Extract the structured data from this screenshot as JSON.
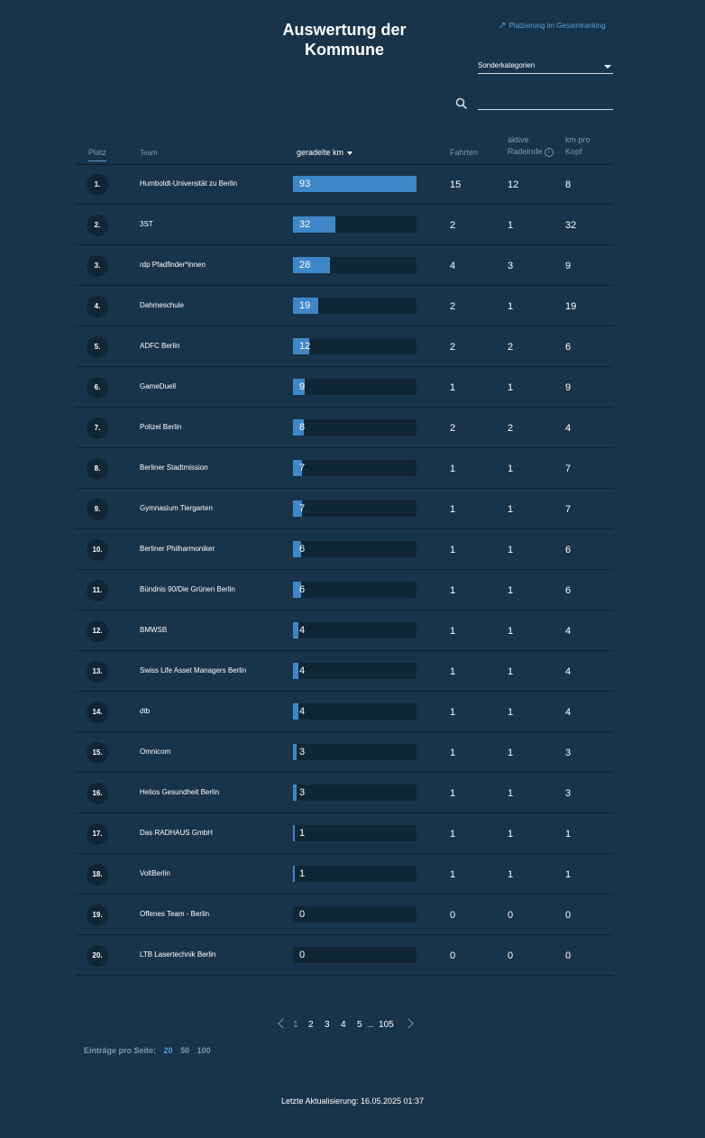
{
  "header": {
    "title": "Auswertung der Kommune",
    "ranking_link": "Platzierung im Gesamtranking",
    "category_select": "Sonderkategorien",
    "search_value": ""
  },
  "table": {
    "columns": {
      "platz": "Platz",
      "team": "Team",
      "km": "geradelte km",
      "fahrten": "Fahrten",
      "aktive_1": "aktive",
      "aktive_2": "Radelnde",
      "kmkopf_1": "km pro",
      "kmkopf_2": "Kopf"
    },
    "max_km": 93,
    "rows": [
      {
        "rank": "1.",
        "team": "Humboldt-Universität zu Berlin",
        "km": 93,
        "fahrten": 15,
        "aktive": 12,
        "kopf": 8
      },
      {
        "rank": "2.",
        "team": "3ST",
        "km": 32,
        "fahrten": 2,
        "aktive": 1,
        "kopf": 32
      },
      {
        "rank": "3.",
        "team": "rdp Pfadfinder*innen",
        "km": 28,
        "fahrten": 4,
        "aktive": 3,
        "kopf": 9
      },
      {
        "rank": "4.",
        "team": "Dahmeschule",
        "km": 19,
        "fahrten": 2,
        "aktive": 1,
        "kopf": 19
      },
      {
        "rank": "5.",
        "team": "ADFC Berlin",
        "km": 12,
        "fahrten": 2,
        "aktive": 2,
        "kopf": 6
      },
      {
        "rank": "6.",
        "team": "GameDuell",
        "km": 9,
        "fahrten": 1,
        "aktive": 1,
        "kopf": 9
      },
      {
        "rank": "7.",
        "team": "Polizei Berlin",
        "km": 8,
        "fahrten": 2,
        "aktive": 2,
        "kopf": 4
      },
      {
        "rank": "8.",
        "team": "Berliner Stadtmission",
        "km": 7,
        "fahrten": 1,
        "aktive": 1,
        "kopf": 7
      },
      {
        "rank": "9.",
        "team": "Gymnasium Tiergarten",
        "km": 7,
        "fahrten": 1,
        "aktive": 1,
        "kopf": 7
      },
      {
        "rank": "10.",
        "team": "Berliner Philharmoniker",
        "km": 6,
        "fahrten": 1,
        "aktive": 1,
        "kopf": 6
      },
      {
        "rank": "11.",
        "team": "Bündnis 90/Die Grünen Berlin",
        "km": 6,
        "fahrten": 1,
        "aktive": 1,
        "kopf": 6
      },
      {
        "rank": "12.",
        "team": "BMWSB",
        "km": 4,
        "fahrten": 1,
        "aktive": 1,
        "kopf": 4
      },
      {
        "rank": "13.",
        "team": "Swiss Life Asset Managers Berlin",
        "km": 4,
        "fahrten": 1,
        "aktive": 1,
        "kopf": 4
      },
      {
        "rank": "14.",
        "team": "dtb",
        "km": 4,
        "fahrten": 1,
        "aktive": 1,
        "kopf": 4
      },
      {
        "rank": "15.",
        "team": "Omnicom",
        "km": 3,
        "fahrten": 1,
        "aktive": 1,
        "kopf": 3
      },
      {
        "rank": "16.",
        "team": "Helios Gesundheit Berlin",
        "km": 3,
        "fahrten": 1,
        "aktive": 1,
        "kopf": 3
      },
      {
        "rank": "17.",
        "team": "Das RADHAUS GmbH",
        "km": 1,
        "fahrten": 1,
        "aktive": 1,
        "kopf": 1
      },
      {
        "rank": "18.",
        "team": "VoltBerlin",
        "km": 1,
        "fahrten": 1,
        "aktive": 1,
        "kopf": 1
      },
      {
        "rank": "19.",
        "team": "Offenes Team - Berlin",
        "km": 0,
        "fahrten": 0,
        "aktive": 0,
        "kopf": 0
      },
      {
        "rank": "20.",
        "team": "LTB Lasertechnik Berlin",
        "km": 0,
        "fahrten": 0,
        "aktive": 0,
        "kopf": 0
      }
    ]
  },
  "pagination": {
    "pages": [
      "1",
      "2",
      "3",
      "4",
      "5"
    ],
    "ellipsis": "...",
    "last": "105",
    "current": "1"
  },
  "per_page": {
    "label": "Einträge pro Seite:",
    "options": [
      "20",
      "50",
      "100"
    ],
    "selected": "20"
  },
  "footer": "Letzte Aktualisierung: 16.05.2025 01:37",
  "colors": {
    "background": "#18344a",
    "accent": "#3f87c7",
    "link": "#5a9fd4",
    "bar_track": "#102635"
  }
}
